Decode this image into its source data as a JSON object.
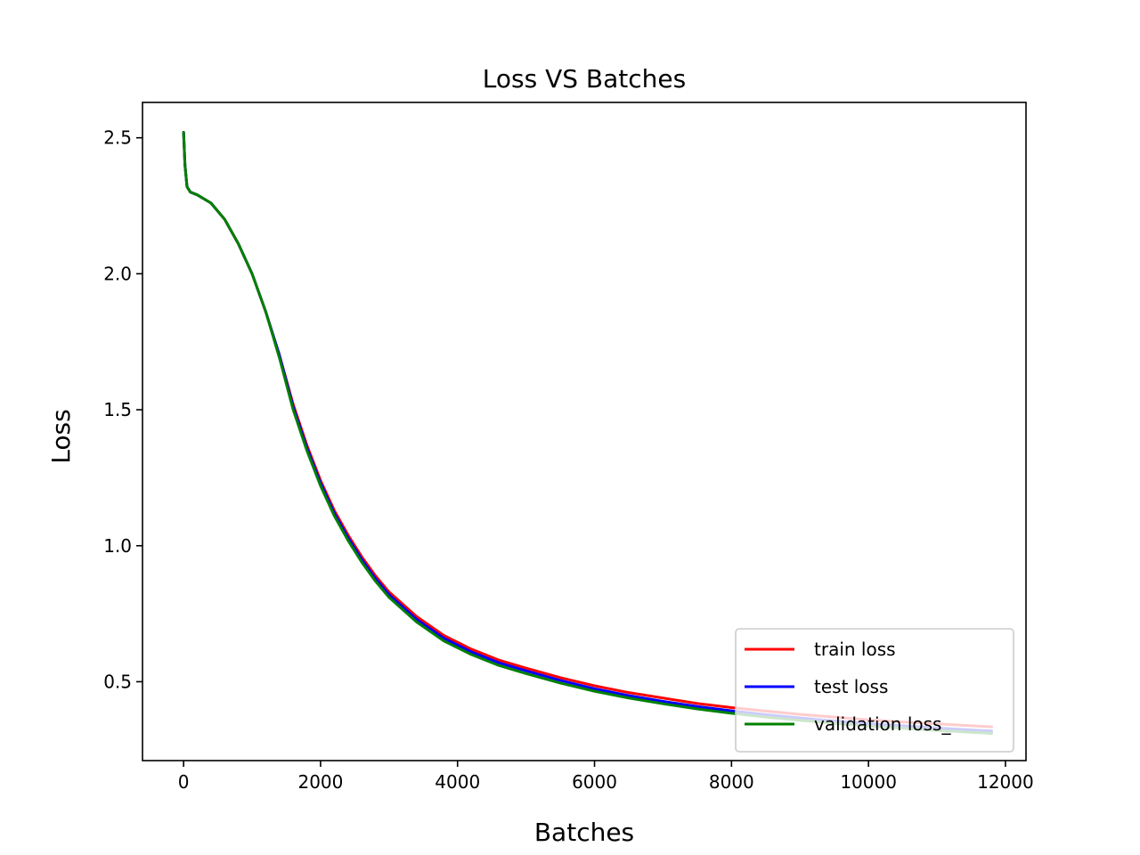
{
  "chart_data": {
    "type": "line",
    "title": "Loss VS Batches",
    "xlabel": "Batches",
    "ylabel": "Loss",
    "xlim": [
      -600,
      12300
    ],
    "ylim": [
      0.21,
      2.63
    ],
    "xticks": [
      0,
      2000,
      4000,
      6000,
      8000,
      10000,
      12000
    ],
    "xtick_labels": [
      "0",
      "2000",
      "4000",
      "6000",
      "8000",
      "10000",
      "12000"
    ],
    "yticks": [
      0.5,
      1.0,
      1.5,
      2.0,
      2.5
    ],
    "ytick_labels": [
      "0.5",
      "1.0",
      "1.5",
      "2.0",
      "2.5"
    ],
    "grid": false,
    "legend_position": "lower-right",
    "x": [
      0,
      20,
      50,
      100,
      200,
      400,
      600,
      800,
      1000,
      1200,
      1400,
      1600,
      1800,
      2000,
      2200,
      2400,
      2600,
      2800,
      3000,
      3400,
      3800,
      4200,
      4600,
      5000,
      5500,
      6000,
      6500,
      7000,
      7500,
      8000,
      8500,
      9000,
      9500,
      10000,
      10500,
      11000,
      11500,
      11800
    ],
    "series": [
      {
        "name": "train loss",
        "color": "#ff0000",
        "values": [
          2.52,
          2.4,
          2.32,
          2.3,
          2.29,
          2.26,
          2.2,
          2.11,
          2.0,
          1.86,
          1.7,
          1.52,
          1.37,
          1.24,
          1.13,
          1.04,
          0.96,
          0.89,
          0.83,
          0.74,
          0.67,
          0.62,
          0.58,
          0.55,
          0.515,
          0.485,
          0.46,
          0.44,
          0.42,
          0.405,
          0.392,
          0.38,
          0.37,
          0.36,
          0.352,
          0.345,
          0.338,
          0.334
        ]
      },
      {
        "name": "test loss",
        "color": "#0000ff",
        "values": [
          2.52,
          2.4,
          2.32,
          2.3,
          2.29,
          2.26,
          2.2,
          2.11,
          2.0,
          1.86,
          1.7,
          1.51,
          1.36,
          1.23,
          1.12,
          1.03,
          0.95,
          0.88,
          0.82,
          0.73,
          0.66,
          0.61,
          0.57,
          0.54,
          0.505,
          0.474,
          0.449,
          0.428,
          0.409,
          0.393,
          0.379,
          0.367,
          0.356,
          0.346,
          0.338,
          0.33,
          0.323,
          0.319
        ]
      },
      {
        "name": "validation loss_",
        "color": "#008000",
        "values": [
          2.52,
          2.4,
          2.32,
          2.3,
          2.29,
          2.26,
          2.2,
          2.11,
          2.0,
          1.86,
          1.69,
          1.5,
          1.35,
          1.22,
          1.11,
          1.02,
          0.94,
          0.87,
          0.81,
          0.72,
          0.65,
          0.6,
          0.56,
          0.53,
          0.495,
          0.465,
          0.44,
          0.419,
          0.4,
          0.384,
          0.37,
          0.358,
          0.347,
          0.337,
          0.329,
          0.321,
          0.314,
          0.31
        ]
      }
    ]
  }
}
